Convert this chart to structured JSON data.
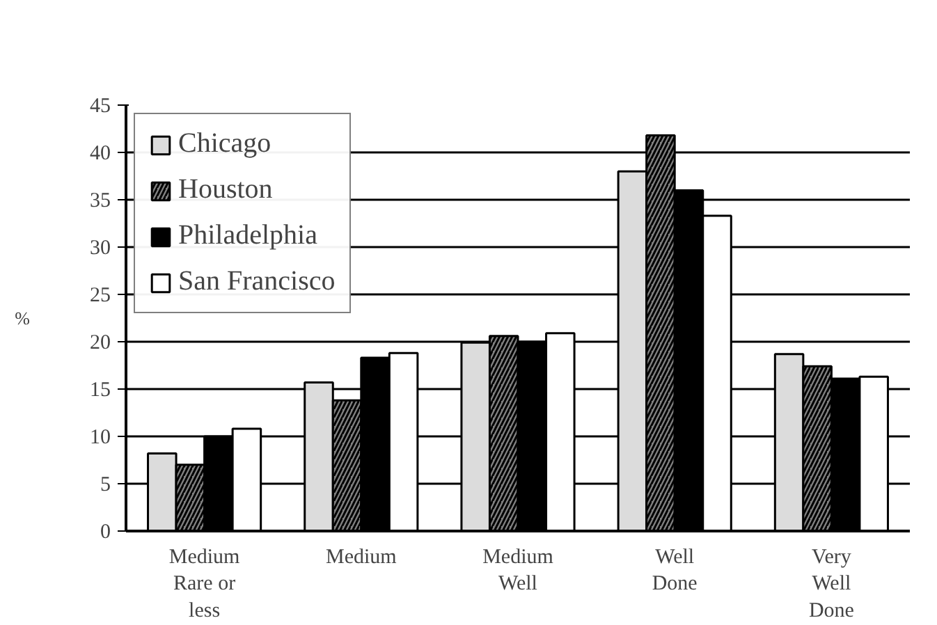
{
  "chart_data": {
    "type": "bar",
    "ylabel": "%",
    "categories": [
      "Medium\nRare or\nless",
      "Medium",
      "Medium\nWell",
      "Well\nDone",
      "Very\nWell\nDone"
    ],
    "series": [
      {
        "name": "Chicago",
        "color": "#dcdcdc",
        "values": [
          8.2,
          15.7,
          19.9,
          38.0,
          18.7
        ]
      },
      {
        "name": "Houston",
        "color": "#808080",
        "values": [
          7.0,
          13.8,
          20.6,
          41.8,
          17.4
        ]
      },
      {
        "name": "Philadelphia",
        "color": "#000000",
        "values": [
          10.0,
          18.3,
          20.0,
          36.0,
          16.1
        ]
      },
      {
        "name": "San Francisco",
        "color": "#ffffff",
        "values": [
          10.8,
          18.8,
          20.9,
          33.3,
          16.3
        ]
      }
    ],
    "ylim": [
      0,
      45
    ],
    "yticks": [
      0,
      5,
      10,
      15,
      20,
      25,
      30,
      35,
      40,
      45
    ],
    "grid": "y",
    "legend": "top left"
  }
}
